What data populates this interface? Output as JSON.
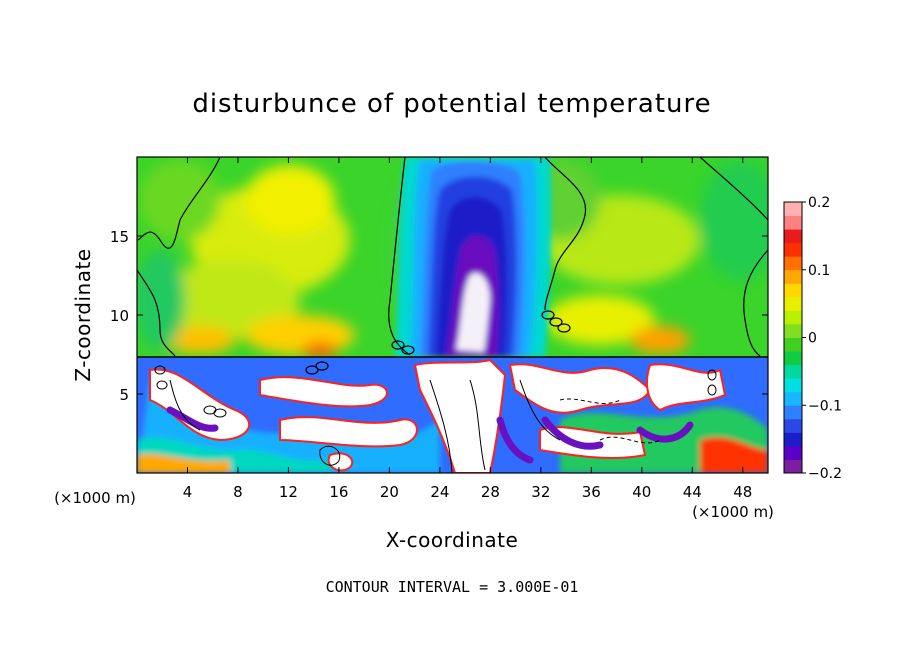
{
  "chart_data": {
    "type": "heatmap",
    "title": "disturbunce of potential temperature",
    "xlabel": "X-coordinate",
    "ylabel": "Z-coordinate",
    "x_unit": "(×1000 m)",
    "x_unit_right": "(×1000 m)",
    "xlim": [
      0,
      50
    ],
    "ylim": [
      0,
      20
    ],
    "x_ticks": [
      "4",
      "8",
      "12",
      "16",
      "20",
      "24",
      "28",
      "32",
      "36",
      "40",
      "44",
      "48"
    ],
    "y_ticks": [
      "15",
      "10",
      "5"
    ],
    "colorbar": {
      "range": [
        -0.2,
        0.2
      ],
      "ticks": [
        "0.2",
        "0.1",
        "0",
        "−0.1",
        "−0.2"
      ],
      "colors": [
        "#7b1fa2",
        "#5a00c8",
        "#1c1cc8",
        "#2a48e6",
        "#2f80ff",
        "#18b6ff",
        "#00e0e0",
        "#00d8a0",
        "#10cc40",
        "#40d020",
        "#80e020",
        "#b8f000",
        "#e8f000",
        "#ffd800",
        "#ffa800",
        "#ff7000",
        "#ff3000",
        "#e81c1c",
        "#ff8080",
        "#ffb0b0"
      ]
    },
    "contour_interval": "CONTOUR INTERVAL = 3.000E-01",
    "features": [
      {
        "name": "cold anomaly (negative plume)",
        "x_center": 27,
        "z_range": [
          7.5,
          18
        ],
        "value": -0.2
      },
      {
        "name": "warm background upper layer",
        "z_range": [
          7.5,
          20
        ],
        "value": 0.05
      },
      {
        "name": "turbulent lower layer",
        "z_range": [
          0,
          7.5
        ]
      }
    ]
  }
}
